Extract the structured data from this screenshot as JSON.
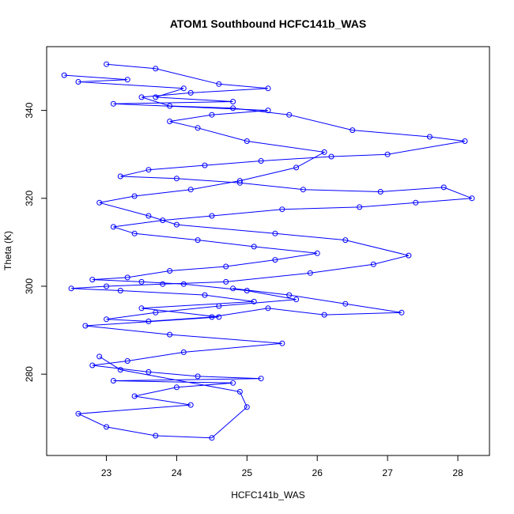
{
  "chart_data": {
    "type": "scatter",
    "title": "ATOM1 Southbound HCFC141b_WAS",
    "xlabel": "HCFC141b_WAS",
    "ylabel": "Theta (K)",
    "xlim": [
      22.15,
      28.45
    ],
    "ylim": [
      261.5,
      354.5
    ],
    "xticks": [
      23,
      24,
      25,
      26,
      27,
      28
    ],
    "yticks": [
      280,
      300,
      320,
      340
    ],
    "grid": false,
    "legend": "none",
    "style": "points connected by lines (type='o')",
    "color": "#0000ff",
    "series": [
      {
        "x": [
          22.4,
          23.3,
          22.6,
          24.1,
          23.7,
          24.8,
          23.1,
          25.3,
          24.5,
          23.9,
          24.3,
          25.0,
          26.1,
          25.7,
          24.9,
          24.2,
          23.4,
          22.9,
          23.6,
          24.0,
          25.4,
          26.4,
          27.3,
          26.8,
          25.9,
          24.7,
          23.8,
          23.0,
          22.5,
          23.2,
          24.4,
          25.1,
          23.5,
          24.6,
          22.7,
          23.9,
          25.5,
          24.1,
          23.3,
          22.8,
          23.6,
          24.3,
          25.2,
          23.1,
          24.8,
          24.0,
          23.4,
          24.2,
          22.6,
          23.0,
          23.7,
          24.5,
          25.0,
          24.9,
          23.2,
          22.9
        ],
        "y": [
          348.0,
          347.0,
          346.5,
          345.0,
          343.0,
          342.0,
          341.5,
          340.0,
          339.0,
          337.5,
          336.0,
          333.0,
          330.5,
          327.0,
          324.0,
          322.0,
          320.5,
          319.0,
          316.0,
          314.0,
          312.0,
          310.5,
          307.0,
          305.0,
          303.0,
          301.0,
          300.5,
          300.0,
          299.5,
          299.0,
          298.0,
          296.5,
          295.0,
          293.0,
          291.0,
          289.0,
          287.0,
          285.0,
          283.0,
          282.0,
          280.5,
          279.5,
          279.0,
          278.5,
          278.0,
          277.0,
          275.0,
          273.0,
          271.0,
          268.0,
          266.0,
          265.5,
          272.5,
          276.0,
          281.0,
          284.0
        ]
      },
      {
        "x": [
          23.0,
          23.7,
          24.6,
          25.3,
          24.2,
          23.5,
          23.9,
          24.8,
          25.6,
          26.5,
          27.6,
          28.1,
          27.0,
          26.2,
          25.2,
          24.4,
          23.6,
          23.2,
          24.0,
          24.9,
          25.8,
          26.9,
          27.8,
          28.2,
          27.4,
          26.6,
          25.5,
          24.5,
          23.8,
          23.1,
          23.4,
          24.3,
          25.1,
          26.0,
          25.4,
          24.7,
          23.9,
          23.3,
          22.8,
          23.5,
          24.1,
          25.0,
          25.7,
          24.6,
          23.7,
          23.0,
          23.6,
          24.5,
          25.3,
          26.1,
          27.2,
          26.4,
          25.6,
          24.8
        ],
        "y": [
          350.5,
          349.5,
          346.0,
          345.0,
          344.0,
          343.0,
          341.0,
          340.5,
          339.0,
          335.5,
          334.0,
          333.0,
          330.0,
          329.5,
          328.5,
          327.5,
          326.5,
          325.0,
          324.5,
          323.5,
          322.0,
          321.5,
          322.5,
          320.0,
          319.0,
          318.0,
          317.5,
          316.0,
          315.0,
          313.5,
          312.0,
          310.5,
          309.0,
          307.5,
          306.0,
          304.5,
          303.5,
          302.0,
          301.5,
          301.0,
          300.5,
          299.0,
          297.0,
          295.5,
          294.0,
          292.5,
          292.0,
          293.0,
          295.0,
          293.5,
          294.0,
          296.0,
          298.0,
          299.5
        ]
      }
    ]
  }
}
